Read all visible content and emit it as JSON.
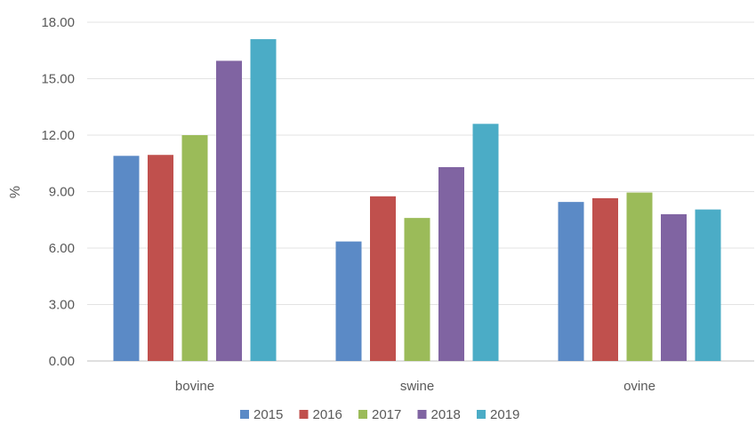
{
  "chart_data": {
    "type": "bar",
    "ylabel": "%",
    "ylim": [
      0,
      18
    ],
    "yticks": [
      "0.00",
      "3.00",
      "6.00",
      "9.00",
      "12.00",
      "15.00",
      "18.00"
    ],
    "grid": true,
    "legend_position": "bottom",
    "categories": [
      "bovine",
      "swine",
      "ovine"
    ],
    "series": [
      {
        "name": "2015",
        "color": "#5B8AC6",
        "values": [
          10.9,
          6.35,
          8.45
        ]
      },
      {
        "name": "2016",
        "color": "#C0504D",
        "values": [
          10.95,
          8.75,
          8.65
        ]
      },
      {
        "name": "2017",
        "color": "#9BBB59",
        "values": [
          12.0,
          7.6,
          8.95
        ]
      },
      {
        "name": "2018",
        "color": "#8064A2",
        "values": [
          15.95,
          10.3,
          7.8
        ]
      },
      {
        "name": "2019",
        "color": "#4BACC6",
        "values": [
          17.1,
          12.6,
          8.05
        ]
      }
    ]
  }
}
